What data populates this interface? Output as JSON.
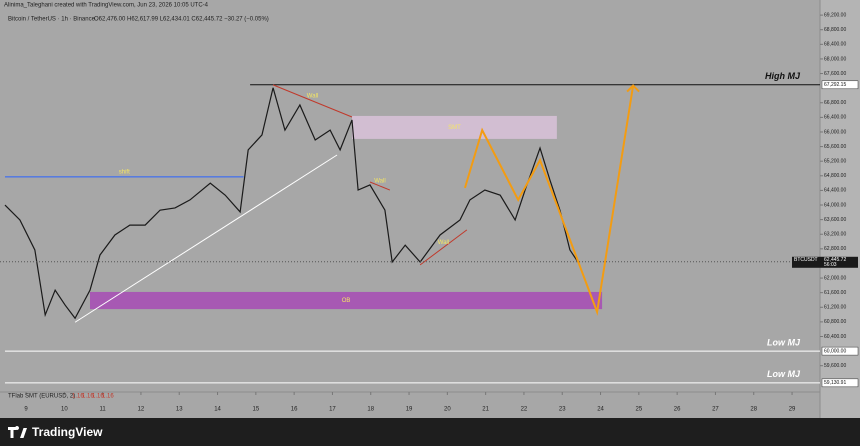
{
  "header": {
    "credit": "Alinima_Taleghani created with TradingView.com, Jun 23, 2026 10:05 UTC-4"
  },
  "footer": {
    "brand": "TradingView"
  },
  "chart_data": {
    "type": "line",
    "title": "Bitcoin / TetherUS · 1h · Binance",
    "ohlc": "O62,476.00 H62,617.99 L62,434.01 C62,445.72 −30.27 (−0.05%)",
    "x": [
      8.45,
      8.84,
      9.23,
      9.5,
      9.76,
      10.02,
      10.28,
      10.67,
      10.93,
      11.32,
      11.71,
      12.11,
      12.5,
      12.89,
      13.28,
      13.81,
      14.2,
      14.59,
      14.8,
      15.16,
      15.45,
      15.76,
      16.15,
      16.55,
      16.94,
      17.2,
      17.51,
      17.67,
      17.98,
      18.37,
      18.56,
      18.9,
      19.29,
      19.81,
      20.33,
      20.59,
      20.98,
      21.38,
      21.77,
      22.03,
      22.42,
      22.68,
      22.94,
      23.2,
      23.41
    ],
    "series": [
      {
        "name": "BTCUSDT",
        "color": "#1a1a1a",
        "values": [
          64000,
          63590,
          62770,
          60990,
          61670,
          61260,
          60900,
          61670,
          62630,
          63180,
          63450,
          63450,
          63860,
          63920,
          64140,
          64600,
          64270,
          63810,
          65510,
          65920,
          67210,
          66050,
          66740,
          65780,
          66050,
          65510,
          66330,
          64410,
          64550,
          63860,
          62440,
          62900,
          62440,
          63180,
          63590,
          64140,
          64410,
          64270,
          63590,
          64410,
          65560,
          64680,
          63860,
          62770,
          62440
        ]
      }
    ],
    "last_price": {
      "value": 62445.72,
      "label": "62,445.72",
      "countdown": "56:03",
      "color": "#1a1a1a"
    },
    "xlim": [
      8.32,
      29.73
    ],
    "xticks": [
      9,
      10,
      11,
      12,
      13,
      14,
      15,
      16,
      17,
      18,
      19,
      20,
      21,
      22,
      23,
      24,
      25,
      26,
      27,
      28,
      29
    ],
    "ylim": [
      58880,
      69340
    ],
    "yticks": [
      {
        "value": 59600,
        "label": "59,600.00"
      },
      {
        "value": 60400,
        "label": "60,400.00"
      },
      {
        "value": 60800,
        "label": "60,800.00"
      },
      {
        "value": 61200,
        "label": "61,200.00"
      },
      {
        "value": 61600,
        "label": "61,600.00"
      },
      {
        "value": 62000,
        "label": "62,000.00"
      },
      {
        "value": 62800,
        "label": "62,800.00"
      },
      {
        "value": 63200,
        "label": "63,200.00"
      },
      {
        "value": 63600,
        "label": "63,600.00"
      },
      {
        "value": 64000,
        "label": "64,000.00"
      },
      {
        "value": 64400,
        "label": "64,400.00"
      },
      {
        "value": 64800,
        "label": "64,800.00"
      },
      {
        "value": 65200,
        "label": "65,200.00"
      },
      {
        "value": 65600,
        "label": "65,600.00"
      },
      {
        "value": 66000,
        "label": "66,000.00"
      },
      {
        "value": 66400,
        "label": "66,400.00"
      },
      {
        "value": 66800,
        "label": "66,800.00"
      },
      {
        "value": 67600,
        "label": "67,600.00"
      },
      {
        "value": 68000,
        "label": "68,000.00"
      },
      {
        "value": 68400,
        "label": "68,400.00"
      },
      {
        "value": 68800,
        "label": "68,800.00"
      },
      {
        "value": 69200,
        "label": "69,200.00"
      }
    ],
    "grid": false,
    "levels": [
      {
        "label": "High MJ",
        "value": 67292.15,
        "price_label": "67,292.15",
        "from": 14.85,
        "color": "#111111"
      },
      {
        "label": "Low MJ",
        "value": 60000,
        "price_label": "60,000.00",
        "from": 8.45,
        "color": "#ffffff"
      },
      {
        "label": "Low MJ",
        "value": 59130.91,
        "price_label": "59,130.91",
        "from": 8.45,
        "color": "#ffffff"
      }
    ],
    "zones": [
      {
        "label": "SMT",
        "x": [
          17.51,
          22.86
        ],
        "y": [
          65810,
          66440
        ],
        "color": "#d9c2d9",
        "text_color": "#f5e663"
      },
      {
        "label": "OB",
        "x": [
          10.67,
          24.04
        ],
        "y": [
          61150,
          61620
        ],
        "color": "#a74bb5",
        "text_color": "#f5e663"
      }
    ],
    "segments": [
      {
        "label": "shift",
        "x": [
          8.45,
          14.68
        ],
        "y": [
          64770,
          64770
        ],
        "color": "#2962ff"
      },
      {
        "label": "Wall",
        "x": [
          15.45,
          17.51
        ],
        "y": [
          67290,
          66410
        ],
        "color": "#c0392b"
      },
      {
        "label": "Wall",
        "x": [
          17.98,
          18.5
        ],
        "y": [
          64630,
          64410
        ],
        "color": "#c0392b"
      },
      {
        "label": "Wall",
        "x": [
          19.29,
          20.51
        ],
        "y": [
          62360,
          63320
        ],
        "color": "#c0392b"
      },
      {
        "x": [
          10.28,
          17.12
        ],
        "y": [
          60790,
          65370
        ],
        "color": "#ffffff"
      }
    ],
    "projection": {
      "color": "#f39c12",
      "x": [
        20.46,
        20.91,
        21.85,
        22.42,
        23.91,
        24.85
      ],
      "y": [
        64470,
        66050,
        64140,
        65230,
        61070,
        67270
      ]
    },
    "indicator": {
      "name": "TFlab SMT (EURUSD, 2)",
      "values": [
        "1.16",
        "1.16",
        "1.16",
        "1.16"
      ]
    }
  }
}
